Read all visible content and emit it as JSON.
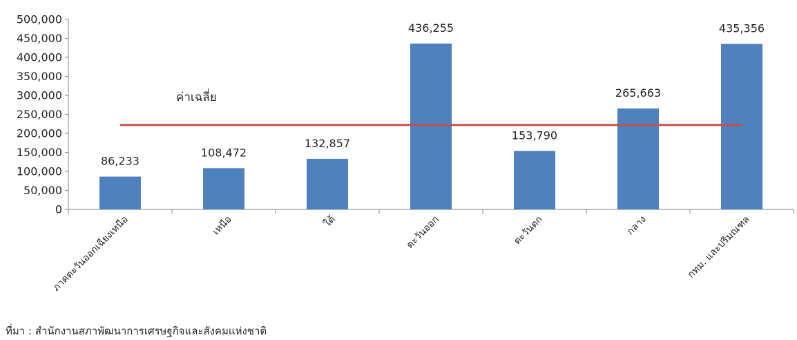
{
  "chart_data": {
    "type": "bar",
    "categories": [
      "ภาคตะวันออกเฉียงเหนือ",
      "เหนือ",
      "ใต้",
      "ตะวันออก",
      "ตะวันตก",
      "กลาง",
      "กทม. และปริมณฑล"
    ],
    "values": [
      86233,
      108472,
      132857,
      436255,
      153790,
      265663,
      435356
    ],
    "value_labels": [
      "86,233",
      "108,472",
      "132,857",
      "436,255",
      "153,790",
      "265,663",
      "435,356"
    ],
    "ylim": [
      0,
      500000
    ],
    "y_ticks": [
      0,
      50000,
      100000,
      150000,
      200000,
      250000,
      300000,
      350000,
      400000,
      450000,
      500000
    ],
    "y_tick_labels": [
      "0",
      "50,000",
      "100,000",
      "150,000",
      "200,000",
      "250,000",
      "300,000",
      "350,000",
      "400,000",
      "450,000",
      "500,000"
    ],
    "average_line": {
      "label": "ค่าเฉลี่ย",
      "value": 222000,
      "color": "#c0504d"
    },
    "bar_color": "#4f81bd",
    "axis_color": "#868686",
    "grid": false
  },
  "source": "ที่มา : สำนักงานสภาพัฒนาการเศรษฐกิจและสังคมแห่งชาติ"
}
